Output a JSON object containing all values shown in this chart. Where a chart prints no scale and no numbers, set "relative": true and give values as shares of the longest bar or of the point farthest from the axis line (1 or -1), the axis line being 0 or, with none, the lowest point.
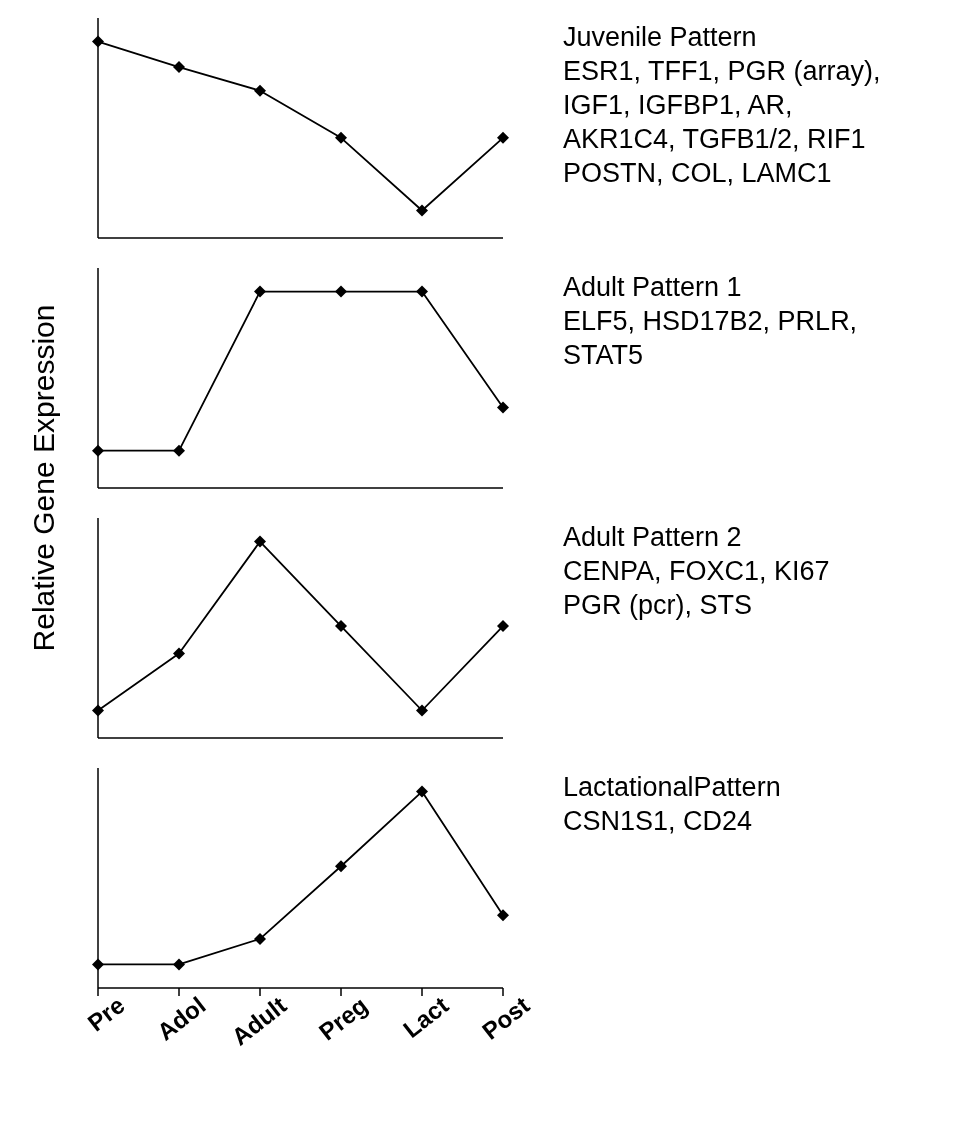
{
  "chart_data": [
    {
      "type": "line",
      "annotations": [
        "Juvenile Pattern",
        "ESR1, TFF1, PGR (array),",
        "IGF1, IGFBP1, AR,",
        "AKR1C4, TGFB1/2, RIF1",
        "POSTN, COL, LAMC1"
      ],
      "categories": [
        null,
        null,
        null,
        null,
        null,
        null
      ],
      "series": [
        {
          "color": "#000000",
          "values": [
            1,
            0.87,
            0.75,
            0.51,
            0.14,
            0.51
          ]
        }
      ],
      "relative": true,
      "marker": "diamond",
      "tick_labels": false
    },
    {
      "type": "line",
      "ylabel": "Relative Gene Expression",
      "annotations": [
        "Adult Pattern 1",
        "ELF5, HSD17B2, PRLR,",
        "STAT5"
      ],
      "categories": [
        null,
        null,
        null,
        null,
        null,
        null
      ],
      "series": [
        {
          "color": "#000000",
          "values": [
            0.19,
            0.19,
            1,
            1,
            1,
            0.41
          ]
        }
      ],
      "relative": true,
      "marker": "diamond",
      "tick_labels": false
    },
    {
      "type": "line",
      "annotations": [
        "Adult Pattern 2",
        "CENPA, FOXC1, KI67",
        "PGR (pcr), STS"
      ],
      "categories": [
        null,
        null,
        null,
        null,
        null,
        null
      ],
      "series": [
        {
          "color": "#000000",
          "values": [
            0.14,
            0.43,
            1,
            0.57,
            0.14,
            0.57
          ]
        }
      ],
      "relative": true,
      "marker": "diamond",
      "tick_labels": false
    },
    {
      "type": "line",
      "annotations": [
        "LactationalPattern",
        "CSN1S1, CD24"
      ],
      "categories": [
        "Pre",
        "Adol",
        "Adult",
        "Preg",
        "Lact",
        "Post"
      ],
      "series": [
        {
          "color": "#000000",
          "values": [
            0.12,
            0.12,
            0.25,
            0.62,
            1,
            0.37
          ]
        }
      ],
      "relative": true,
      "marker": "diamond",
      "tick_labels": "x"
    }
  ]
}
